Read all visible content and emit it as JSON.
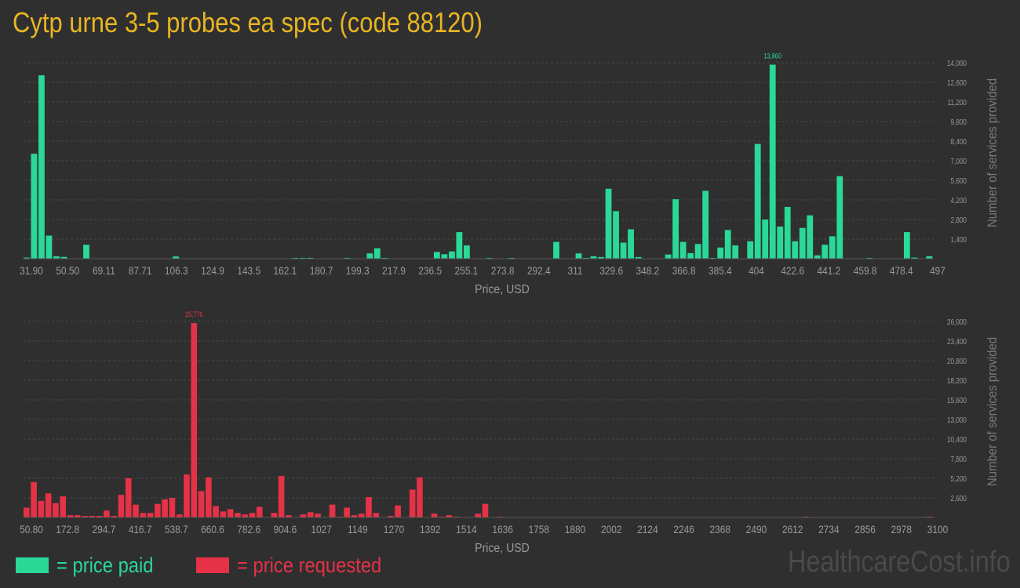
{
  "title": "Cytp urne 3-5 probes ea spec (code 88120)",
  "legend": {
    "paid_label": "= price paid",
    "requested_label": "= price requested"
  },
  "watermark": "HealthcareCost.info",
  "colors": {
    "paid": "#2ad898",
    "requested": "#e53247",
    "title": "#e8b523",
    "axis_text": "#9a9a9a",
    "background": "#2f2f2f"
  },
  "chart_data": [
    {
      "type": "bar",
      "name": "price paid",
      "xlabel": "Price, USD",
      "ylabel": "Number of services provided",
      "ylim": [
        0,
        14000
      ],
      "y_ticks": [
        "1,400",
        "2,800",
        "4,200",
        "5,600",
        "7,000",
        "8,400",
        "9,800",
        "11,200",
        "12,600",
        "14,000"
      ],
      "x_tick_labels": [
        "31.90",
        "50.50",
        "69.11",
        "87.71",
        "106.3",
        "124.9",
        "143.5",
        "162.1",
        "180.7",
        "199.3",
        "217.9",
        "236.5",
        "255.1",
        "273.8",
        "292.4",
        "311",
        "329.6",
        "348.2",
        "366.8",
        "385.4",
        "404",
        "422.6",
        "441.2",
        "459.8",
        "478.4",
        "497"
      ],
      "x_range": [
        31.9,
        497
      ],
      "peak_label": "13,860",
      "grid": true,
      "values": [
        80,
        7500,
        13100,
        1650,
        180,
        130,
        0,
        0,
        1000,
        0,
        0,
        0,
        0,
        0,
        0,
        0,
        0,
        0,
        0,
        0,
        160,
        0,
        0,
        0,
        0,
        0,
        0,
        0,
        0,
        0,
        0,
        0,
        0,
        0,
        0,
        0,
        60,
        60,
        60,
        0,
        0,
        0,
        0,
        60,
        0,
        0,
        380,
        750,
        60,
        0,
        0,
        0,
        0,
        0,
        0,
        480,
        320,
        520,
        1900,
        950,
        0,
        0,
        60,
        0,
        0,
        60,
        0,
        0,
        0,
        0,
        0,
        1200,
        0,
        0,
        380,
        60,
        180,
        120,
        5000,
        3400,
        1150,
        2100,
        120,
        0,
        0,
        0,
        300,
        4250,
        1200,
        400,
        1050,
        4850,
        60,
        800,
        2050,
        950,
        0,
        1250,
        8200,
        2800,
        13860,
        2300,
        3700,
        1250,
        2200,
        3100,
        240,
        1000,
        1600,
        5900,
        0,
        0,
        0,
        60,
        0,
        0,
        0,
        0,
        1900,
        80,
        0,
        180
      ],
      "note": ""
    },
    {
      "type": "bar",
      "name": "price requested",
      "xlabel": "Price, USD",
      "ylabel": "Number of services provided",
      "ylim": [
        0,
        26000
      ],
      "y_ticks": [
        "2,600",
        "5,200",
        "7,800",
        "10,400",
        "13,000",
        "15,600",
        "18,200",
        "20,800",
        "23,400",
        "26,000"
      ],
      "x_tick_labels": [
        "50.80",
        "172.8",
        "294.7",
        "416.7",
        "538.7",
        "660.6",
        "782.6",
        "904.6",
        "1027",
        "1149",
        "1270",
        "1392",
        "1514",
        "1636",
        "1758",
        "1880",
        "2002",
        "2124",
        "2246",
        "2368",
        "2490",
        "2612",
        "2734",
        "2856",
        "2978",
        "3100"
      ],
      "x_range": [
        50.8,
        3100
      ],
      "peak_label": "25,776",
      "grid": true,
      "values": [
        1300,
        4700,
        2200,
        3200,
        1900,
        2800,
        300,
        300,
        200,
        200,
        200,
        900,
        200,
        3000,
        5200,
        1700,
        600,
        600,
        1800,
        2400,
        2600,
        400,
        5700,
        25776,
        3500,
        5300,
        1500,
        800,
        1100,
        600,
        400,
        600,
        1400,
        0,
        600,
        5500,
        300,
        0,
        400,
        700,
        500,
        0,
        1700,
        100,
        1300,
        300,
        500,
        2700,
        600,
        0,
        200,
        1600,
        0,
        3700,
        5300,
        0,
        500,
        100,
        300,
        100,
        0,
        0,
        500,
        1800,
        0,
        100,
        0,
        0,
        0,
        0,
        0,
        0,
        0,
        0,
        0,
        0,
        0,
        0,
        0,
        0,
        0,
        0,
        0,
        0,
        0,
        0,
        0,
        0,
        0,
        0,
        0,
        0,
        0,
        0,
        0,
        0,
        0,
        0,
        0,
        0,
        0,
        0,
        0,
        0,
        0,
        0,
        0,
        100,
        0,
        0,
        0,
        0,
        0,
        0,
        0,
        0,
        0,
        0,
        0,
        0,
        0,
        0,
        0,
        0,
        100
      ],
      "note": ""
    }
  ]
}
